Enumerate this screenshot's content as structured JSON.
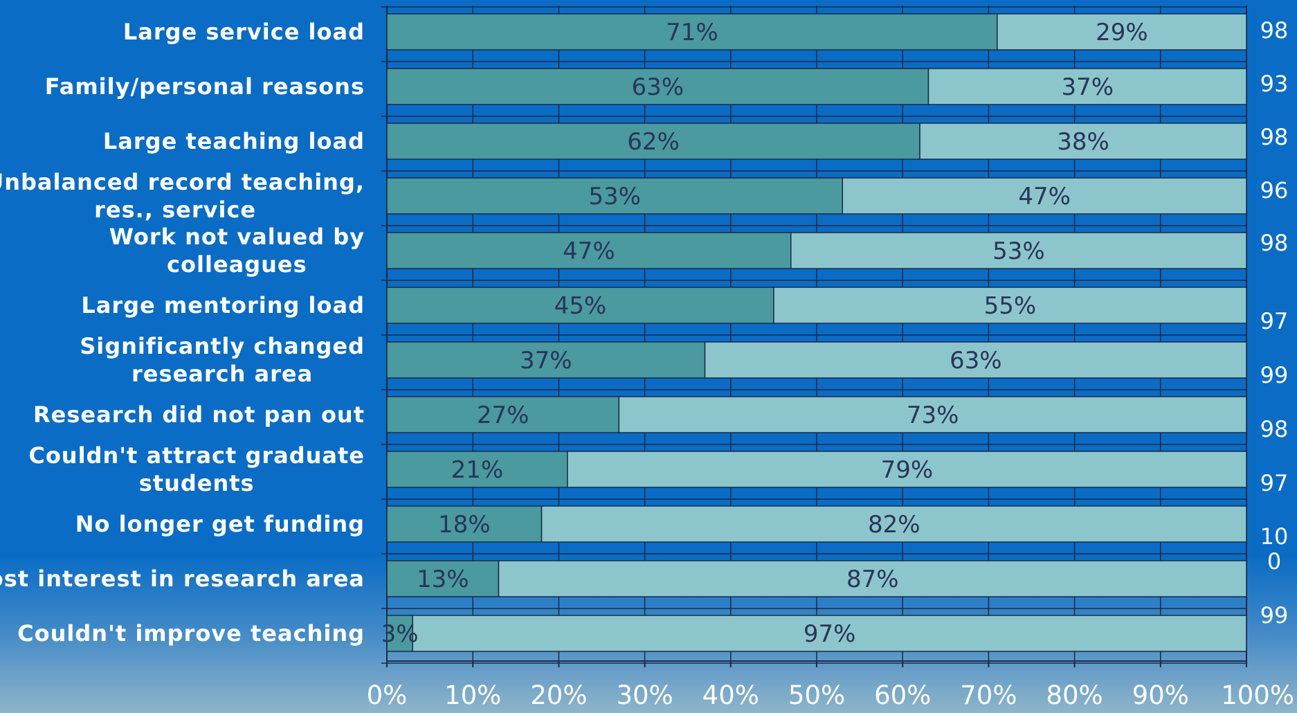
{
  "chart_data": {
    "type": "bar",
    "orientation": "horizontal",
    "stacked": true,
    "title": "",
    "xlabel": "",
    "ylabel": "",
    "xlim": [
      0,
      100
    ],
    "grid": true,
    "x_ticks": [
      "0%",
      "10%",
      "20%",
      "30%",
      "40%",
      "50%",
      "60%",
      "70%",
      "80%",
      "90%",
      "100%"
    ],
    "categories": [
      "Large service load",
      "Family/personal reasons",
      "Large teaching load",
      "Unbalanced record teaching, res., service",
      "Work not valued by colleagues",
      "Large mentoring load",
      "Significantly changed research area",
      "Research did not pan out",
      "Couldn't attract graduate students",
      "No longer get funding",
      "Lost interest in research area",
      "Couldn't improve teaching"
    ],
    "category_label_lines": [
      [
        "Large service load"
      ],
      [
        "Family/personal reasons"
      ],
      [
        "Large teaching load"
      ],
      [
        "Unbalanced record teaching,",
        "res., service"
      ],
      [
        "Work not valued by",
        "colleagues"
      ],
      [
        "Large mentoring load"
      ],
      [
        "Significantly changed",
        "research area"
      ],
      [
        "Research did not pan out"
      ],
      [
        "Couldn't attract graduate",
        "students"
      ],
      [
        "No longer get funding"
      ],
      [
        "Lost interest in research area"
      ],
      [
        "Couldn't improve teaching"
      ]
    ],
    "series": [
      {
        "color": "#4a9aa0",
        "values": [
          71,
          63,
          62,
          53,
          47,
          45,
          37,
          27,
          21,
          18,
          13,
          3
        ],
        "labels": [
          "71%",
          "63%",
          "62%",
          "53%",
          "47%",
          "45%",
          "37%",
          "27%",
          "21%",
          "18%",
          "13%",
          "3%"
        ]
      },
      {
        "color": "#8cc6cc",
        "values": [
          29,
          37,
          38,
          47,
          53,
          55,
          63,
          73,
          79,
          82,
          87,
          97
        ],
        "labels": [
          "29%",
          "37%",
          "38%",
          "47%",
          "53%",
          "55%",
          "63%",
          "73%",
          "79%",
          "82%",
          "87%",
          "97%"
        ]
      }
    ],
    "n_labels": [
      "98",
      "93",
      "98",
      "96",
      "98",
      "97",
      "99",
      "98",
      "97",
      "10",
      "0",
      "99"
    ],
    "colors": {
      "background": "#0a6cc4",
      "grid": "#1b2a44",
      "text": "#ffffff",
      "segment_text": "#2a3558"
    }
  }
}
